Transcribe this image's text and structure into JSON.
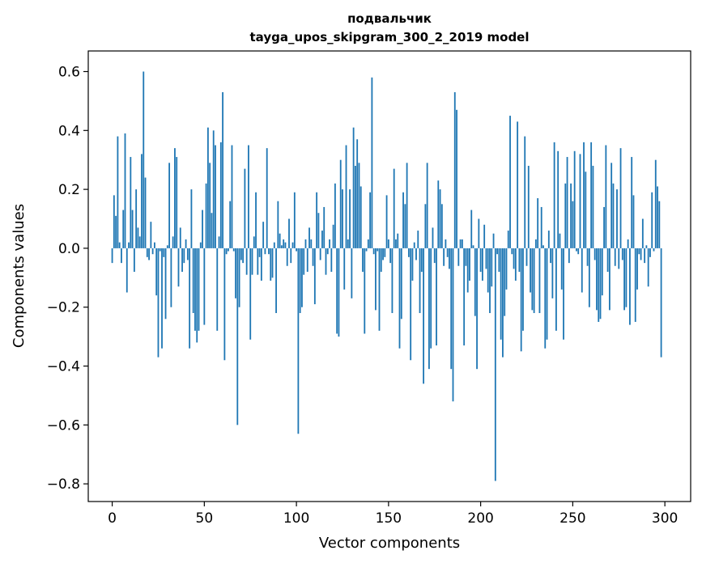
{
  "chart_data": {
    "type": "bar",
    "title": "подвальчик",
    "subtitle": "tayga_upos_skipgram_300_2_2019 model",
    "xlabel": "Vector components",
    "ylabel": "Components values",
    "xlim": [
      -13,
      314
    ],
    "ylim": [
      -0.86,
      0.67
    ],
    "xticks": [
      0,
      50,
      100,
      150,
      200,
      250,
      300
    ],
    "yticks": [
      0.6,
      0.4,
      0.2,
      0.0,
      -0.2,
      -0.4,
      -0.6,
      -0.8
    ],
    "ytick_labels": [
      "0.6",
      "0.4",
      "0.2",
      "0.0",
      "−0.2",
      "−0.4",
      "−0.6",
      "−0.8"
    ],
    "xtick_labels": [
      "0",
      "50",
      "100",
      "150",
      "200",
      "250",
      "300"
    ],
    "bar_color": "#1f77b4",
    "series": [
      {
        "name": "components",
        "values": [
          -0.05,
          0.18,
          0.11,
          0.38,
          0.02,
          -0.05,
          0.13,
          0.39,
          -0.15,
          0.02,
          0.31,
          0.13,
          -0.08,
          0.2,
          0.07,
          0.04,
          0.32,
          0.6,
          0.24,
          -0.03,
          -0.04,
          0.09,
          -0.02,
          0.02,
          -0.16,
          -0.37,
          -0.01,
          -0.34,
          -0.03,
          -0.24,
          0.01,
          0.29,
          -0.2,
          0.04,
          0.34,
          0.31,
          -0.13,
          0.07,
          -0.08,
          -0.05,
          0.03,
          -0.04,
          -0.34,
          0.2,
          -0.22,
          -0.28,
          -0.32,
          -0.28,
          0.02,
          0.13,
          -0.26,
          0.22,
          0.41,
          0.29,
          0.12,
          0.4,
          0.35,
          -0.28,
          0.04,
          0.36,
          0.53,
          -0.38,
          -0.02,
          -0.01,
          0.16,
          0.35,
          -0.01,
          -0.17,
          -0.6,
          -0.2,
          -0.04,
          -0.05,
          0.27,
          -0.09,
          0.35,
          -0.31,
          -0.09,
          0.04,
          0.19,
          -0.09,
          -0.03,
          -0.11,
          0.09,
          -0.02,
          0.34,
          -0.02,
          -0.11,
          -0.1,
          0.02,
          -0.22,
          0.16,
          0.05,
          0.01,
          0.03,
          0.02,
          -0.06,
          0.1,
          -0.05,
          0.02,
          0.19,
          -0.01,
          -0.63,
          -0.22,
          -0.2,
          -0.09,
          0.03,
          -0.08,
          0.07,
          0.03,
          -0.06,
          -0.19,
          0.19,
          0.12,
          -0.04,
          0.06,
          0.14,
          -0.09,
          -0.02,
          0.03,
          -0.08,
          0.08,
          0.22,
          -0.29,
          -0.3,
          0.3,
          0.2,
          -0.14,
          0.35,
          0.03,
          0.2,
          -0.17,
          0.41,
          0.28,
          0.37,
          0.29,
          0.21,
          -0.08,
          -0.29,
          -0.01,
          0.03,
          0.19,
          0.58,
          -0.02,
          -0.21,
          -0.01,
          -0.28,
          -0.08,
          -0.04,
          -0.03,
          0.18,
          0.03,
          -0.05,
          -0.22,
          0.27,
          0.03,
          0.05,
          -0.34,
          -0.24,
          0.19,
          0.15,
          0.29,
          -0.03,
          -0.38,
          -0.11,
          0.02,
          -0.04,
          0.06,
          -0.22,
          -0.08,
          -0.46,
          0.15,
          0.29,
          -0.41,
          -0.34,
          0.07,
          -0.05,
          -0.33,
          0.23,
          0.2,
          0.15,
          -0.06,
          0.03,
          -0.03,
          -0.07,
          -0.41,
          -0.52,
          0.53,
          0.47,
          -0.06,
          0.03,
          0.03,
          -0.33,
          -0.06,
          -0.15,
          -0.11,
          0.13,
          0.01,
          -0.23,
          -0.41,
          0.1,
          -0.08,
          -0.11,
          0.08,
          -0.07,
          -0.15,
          -0.22,
          -0.13,
          0.05,
          -0.79,
          -0.02,
          -0.08,
          -0.31,
          -0.37,
          -0.23,
          -0.14,
          0.06,
          0.45,
          -0.02,
          -0.07,
          -0.11,
          0.43,
          -0.08,
          -0.35,
          -0.28,
          0.38,
          -0.06,
          0.28,
          -0.15,
          -0.21,
          -0.22,
          0.03,
          0.17,
          -0.22,
          0.14,
          0.01,
          -0.34,
          -0.31,
          0.06,
          -0.05,
          -0.17,
          0.36,
          -0.28,
          0.33,
          0.05,
          -0.14,
          -0.31,
          0.22,
          0.31,
          -0.05,
          0.22,
          0.16,
          0.33,
          -0.01,
          -0.02,
          0.32,
          -0.15,
          0.36,
          0.26,
          -0.06,
          -0.2,
          0.36,
          0.28,
          -0.04,
          -0.21,
          -0.25,
          -0.24,
          -0.16,
          0.14,
          0.35,
          -0.08,
          -0.21,
          0.29,
          0.22,
          -0.06,
          0.2,
          -0.07,
          0.34,
          -0.04,
          -0.21,
          -0.2,
          0.03,
          -0.26,
          0.31,
          0.18,
          -0.25,
          -0.14,
          -0.02,
          -0.04,
          0.1,
          -0.05,
          0.01,
          -0.13,
          -0.03,
          0.19,
          -0.01,
          0.3,
          0.21,
          0.16,
          -0.37
        ]
      }
    ]
  }
}
